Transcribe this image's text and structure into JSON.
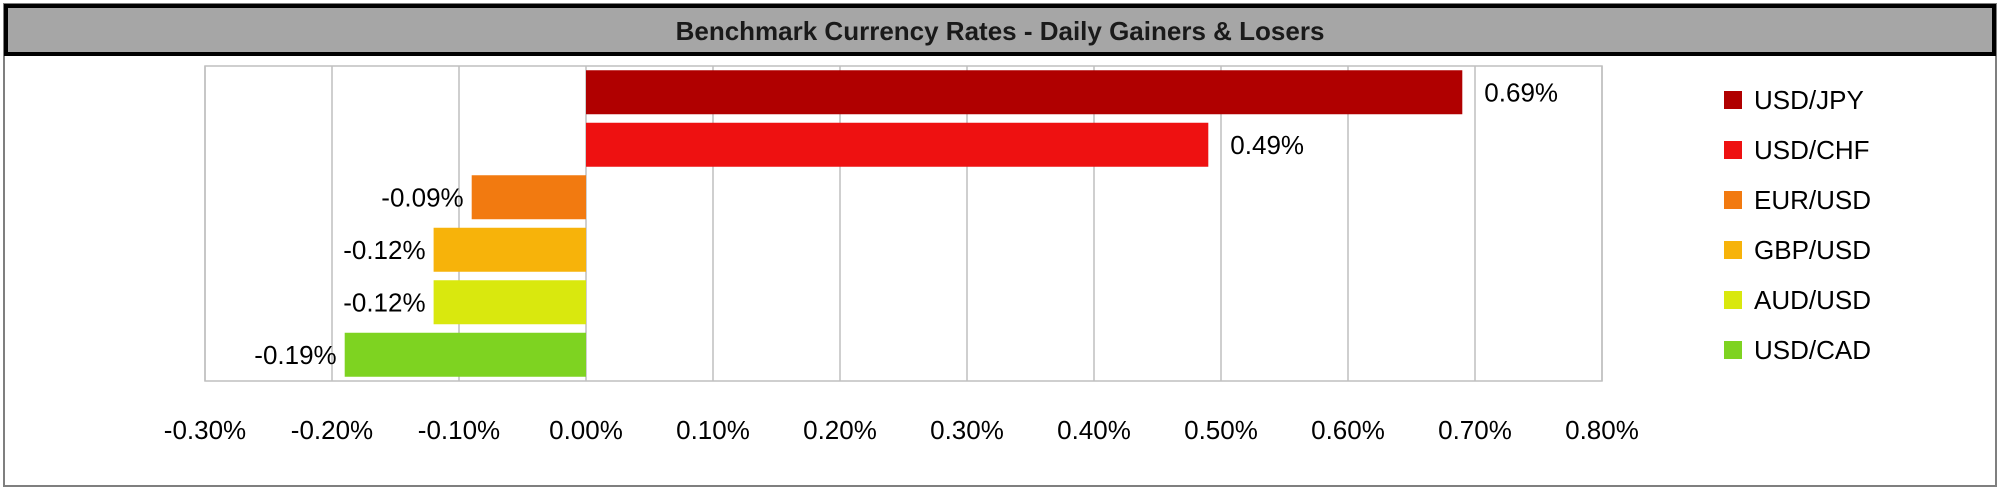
{
  "chart_data": {
    "type": "bar",
    "orientation": "horizontal",
    "title": "Benchmark Currency Rates - Daily Gainers & Losers",
    "categories": [
      "USD/JPY",
      "USD/CHF",
      "EUR/USD",
      "GBP/USD",
      "AUD/USD",
      "USD/CAD"
    ],
    "values": [
      0.69,
      0.49,
      -0.09,
      -0.12,
      -0.12,
      -0.19
    ],
    "value_labels": [
      "0.69%",
      "0.49%",
      "-0.09%",
      "-0.12%",
      "-0.12%",
      "-0.19%"
    ],
    "colors": [
      "#b00000",
      "#ee1111",
      "#f27a10",
      "#f7b30a",
      "#d9e80e",
      "#7ed321"
    ],
    "xlim": [
      -0.3,
      0.8
    ],
    "xticks": [
      -0.3,
      -0.2,
      -0.1,
      0.0,
      0.1,
      0.2,
      0.3,
      0.4,
      0.5,
      0.6,
      0.7,
      0.8
    ],
    "xtick_labels": [
      "-0.30%",
      "-0.20%",
      "-0.10%",
      "0.00%",
      "0.10%",
      "0.20%",
      "0.30%",
      "0.40%",
      "0.50%",
      "0.60%",
      "0.70%",
      "0.80%"
    ],
    "grid": "vertical",
    "legend_position": "right",
    "title_background": "#a6a6a6",
    "grid_color": "#bfbfbf"
  }
}
